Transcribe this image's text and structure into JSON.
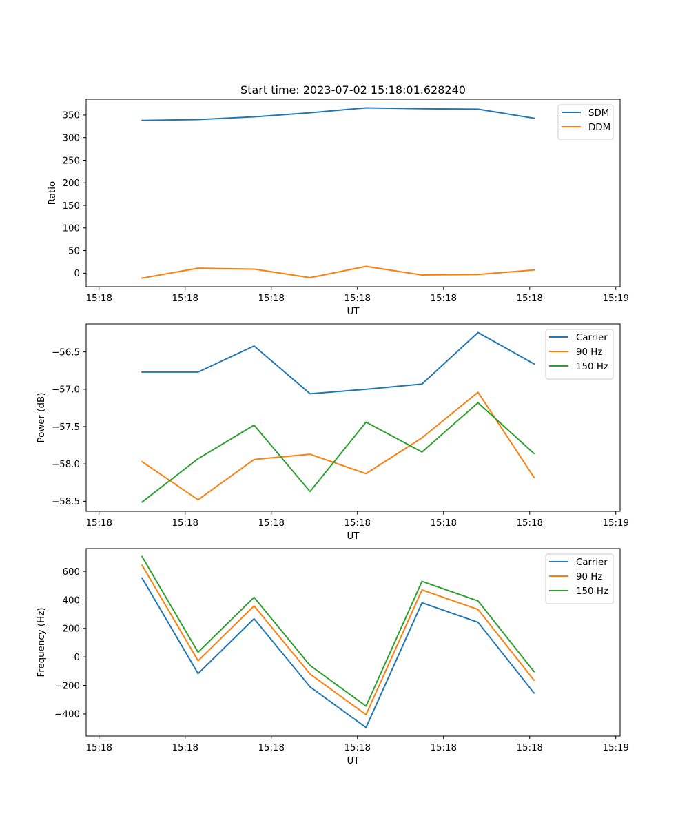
{
  "title": "Start time: 2023-07-02 15:18:01.628240",
  "chart_data": [
    {
      "type": "line",
      "title": "Start time: 2023-07-02 15:18:01.628240",
      "xlabel": "UT",
      "ylabel": "Ratio",
      "x_ticks": [
        0,
        10,
        20,
        30,
        40,
        50,
        60
      ],
      "x_tick_labels": [
        "15:18",
        "15:18",
        "15:18",
        "15:18",
        "15:18",
        "15:18",
        "15:19"
      ],
      "xlim": [
        -1.5,
        60.5
      ],
      "ylim": [
        -30,
        385
      ],
      "y_ticks": [
        0,
        50,
        100,
        150,
        200,
        250,
        300,
        350
      ],
      "y_tick_labels": [
        "0",
        "50",
        "100",
        "150",
        "200",
        "250",
        "300",
        "350"
      ],
      "x": [
        5,
        11.5,
        18,
        24.5,
        31,
        37.5,
        44,
        50.5
      ],
      "series": [
        {
          "name": "SDM",
          "color": "#1f77b4",
          "values": [
            338,
            340,
            346,
            355,
            366,
            364,
            363,
            343
          ]
        },
        {
          "name": "DDM",
          "color": "#ff7f0e",
          "values": [
            -11,
            11,
            9,
            -10,
            15,
            -4,
            -3,
            7
          ]
        }
      ],
      "legend": "top-right"
    },
    {
      "type": "line",
      "title": "",
      "xlabel": "UT",
      "ylabel": "Power (dB)",
      "x_ticks": [
        0,
        10,
        20,
        30,
        40,
        50,
        60
      ],
      "x_tick_labels": [
        "15:18",
        "15:18",
        "15:18",
        "15:18",
        "15:18",
        "15:18",
        "15:19"
      ],
      "xlim": [
        -1.5,
        60.5
      ],
      "ylim": [
        -58.635,
        -56.125
      ],
      "y_ticks": [
        -58.5,
        -58.0,
        -57.5,
        -57.0,
        -56.5
      ],
      "y_tick_labels": [
        "−58.5",
        "−58.0",
        "−57.5",
        "−57.0",
        "−56.5"
      ],
      "x": [
        5,
        11.5,
        18,
        24.5,
        31,
        37.5,
        44,
        50.5
      ],
      "series": [
        {
          "name": "Carrier",
          "color": "#1f77b4",
          "values": [
            -56.77,
            -56.77,
            -56.42,
            -57.06,
            -57.0,
            -56.93,
            -56.24,
            -56.66
          ]
        },
        {
          "name": "90 Hz",
          "color": "#ff7f0e",
          "values": [
            -57.97,
            -58.48,
            -57.94,
            -57.87,
            -58.13,
            -57.65,
            -57.04,
            -58.18
          ]
        },
        {
          "name": "150 Hz",
          "color": "#2ca02c",
          "values": [
            -58.51,
            -57.93,
            -57.48,
            -58.37,
            -57.44,
            -57.84,
            -57.18,
            -57.86
          ]
        }
      ],
      "legend": "top-right"
    },
    {
      "type": "line",
      "title": "",
      "xlabel": "UT",
      "ylabel": "Frequency (Hz)",
      "x_ticks": [
        0,
        10,
        20,
        30,
        40,
        50,
        60
      ],
      "x_tick_labels": [
        "15:18",
        "15:18",
        "15:18",
        "15:18",
        "15:18",
        "15:18",
        "15:19"
      ],
      "xlim": [
        -1.5,
        60.5
      ],
      "ylim": [
        -555,
        760
      ],
      "y_ticks": [
        -400,
        -200,
        0,
        200,
        400,
        600
      ],
      "y_tick_labels": [
        "−400",
        "−200",
        "0",
        "200",
        "400",
        "600"
      ],
      "x": [
        5,
        11.5,
        18,
        24.5,
        31,
        37.5,
        44,
        50.5
      ],
      "series": [
        {
          "name": "Carrier",
          "color": "#1f77b4",
          "values": [
            553,
            -117,
            268,
            -210,
            -495,
            380,
            243,
            -253
          ]
        },
        {
          "name": "90 Hz",
          "color": "#ff7f0e",
          "values": [
            643,
            -27,
            358,
            -120,
            -405,
            470,
            333,
            -163
          ]
        },
        {
          "name": "150 Hz",
          "color": "#2ca02c",
          "values": [
            703,
            33,
            418,
            -60,
            -345,
            530,
            393,
            -103
          ]
        }
      ],
      "legend": "top-right"
    }
  ]
}
